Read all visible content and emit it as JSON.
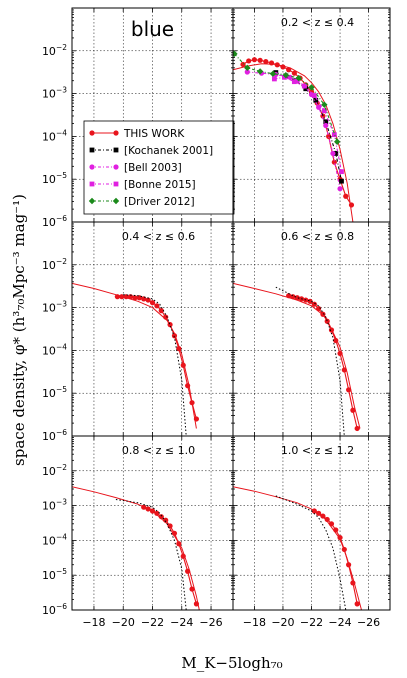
{
  "figure": {
    "panel_label": "blue",
    "ylabel": "space density, φ* (h³₇₀Mpc⁻³ mag⁻¹)",
    "xlabel": "M_K−5logh₇₀"
  },
  "chart_data": [
    {
      "type": "line",
      "title": "",
      "panel": "top-left",
      "xlim": [
        -16.5,
        -27.5
      ],
      "ylim": [
        1e-06,
        0.1
      ],
      "yscale": "log",
      "grid": true,
      "legend_position": "bottom-left",
      "legend": [
        "THIS WORK",
        "[Kochanek 2001]",
        "[Bell 2003]",
        "[Bonne 2015]",
        "[Driver 2012]"
      ],
      "series": []
    },
    {
      "type": "line",
      "title": "0.2 < z ≤ 0.4",
      "panel": "top-right",
      "xlim": [
        -16.5,
        -27.5
      ],
      "ylim": [
        1e-06,
        0.1
      ],
      "yscale": "log",
      "grid": true,
      "series": [
        {
          "name": "THIS WORK",
          "color": "#e8141c",
          "marker": "circle",
          "x": [
            -17.2,
            -17.6,
            -18.0,
            -18.4,
            -18.8,
            -19.2,
            -19.6,
            -20.0,
            -20.4,
            -20.8,
            -21.2,
            -21.6,
            -22.0,
            -22.4,
            -22.8,
            -23.2,
            -23.6,
            -24.0,
            -24.4,
            -24.8
          ],
          "y": [
            0.0048,
            0.0058,
            0.0062,
            0.006,
            0.0056,
            0.0052,
            0.0047,
            0.0042,
            0.0036,
            0.003,
            0.0023,
            0.0016,
            0.0011,
            0.0006,
            0.0003,
            0.0001,
            2.5e-05,
            1e-05,
            4e-06,
            2.5e-06
          ]
        },
        {
          "name": "THIS WORK fit",
          "color": "#e8141c",
          "marker": "none",
          "x": [
            -16.5,
            -17.5,
            -18.5,
            -19.5,
            -20.5,
            -21.5,
            -22.0,
            -22.5,
            -23.0,
            -23.5,
            -24.0,
            -24.5,
            -24.9
          ],
          "y": [
            0.0036,
            0.0044,
            0.005,
            0.0048,
            0.004,
            0.0026,
            0.0018,
            0.0011,
            0.00055,
            0.0002,
            5e-05,
            8e-06,
            1e-06
          ]
        },
        {
          "name": "[Kochanek 2001]",
          "color": "#000000",
          "marker": "square",
          "x": [
            -19.5,
            -20.2,
            -20.9,
            -21.6,
            -22.3,
            -23.0,
            -23.7,
            -24.1
          ],
          "y": [
            0.0031,
            0.0026,
            0.002,
            0.0013,
            0.0007,
            0.00022,
            4e-05,
            9e-06
          ]
        },
        {
          "name": "[Bell 2003]",
          "color": "#e020e0",
          "marker": "circle",
          "x": [
            -17.5,
            -18.5,
            -19.5,
            -20.5,
            -21.0,
            -21.5,
            -22.0,
            -22.5,
            -23.0,
            -23.5,
            -24.0
          ],
          "y": [
            0.0032,
            0.003,
            0.0028,
            0.0024,
            0.002,
            0.0015,
            0.00095,
            0.00048,
            0.00018,
            4e-05,
            6e-06
          ]
        },
        {
          "name": "[Bonne 2015]",
          "color": "#e020e0",
          "marker": "square",
          "x": [
            -19.4,
            -20.1,
            -20.8,
            -21.5,
            -22.2,
            -22.9,
            -23.6,
            -24.1
          ],
          "y": [
            0.0022,
            0.0024,
            0.0019,
            0.0015,
            0.0009,
            0.0004,
            0.00011,
            1.5e-05
          ]
        },
        {
          "name": "[Driver 2012]",
          "color": "#1b8a1b",
          "marker": "diamond",
          "x": [
            -16.6,
            -17.5,
            -18.4,
            -19.3,
            -20.2,
            -21.1,
            -22.0,
            -22.9,
            -23.8
          ],
          "y": [
            0.0085,
            0.004,
            0.0033,
            0.0029,
            0.0027,
            0.0023,
            0.0014,
            0.00055,
            7.5e-05
          ]
        }
      ]
    },
    {
      "type": "line",
      "title": "0.4 < z ≤ 0.6",
      "panel": "middle-left",
      "xlim": [
        -16.5,
        -27.5
      ],
      "ylim": [
        1e-06,
        0.1
      ],
      "yscale": "log",
      "grid": true,
      "series": [
        {
          "name": "THIS WORK",
          "color": "#e8141c",
          "marker": "circle",
          "x": [
            -19.6,
            -19.9,
            -20.2,
            -20.5,
            -20.8,
            -21.1,
            -21.4,
            -21.7,
            -22.0,
            -22.3,
            -22.6,
            -22.9,
            -23.2,
            -23.5,
            -23.8,
            -24.1,
            -24.4,
            -24.7,
            -25.0
          ],
          "y": [
            0.0018,
            0.0018,
            0.0018,
            0.0018,
            0.0017,
            0.0017,
            0.0016,
            0.0015,
            0.0013,
            0.0011,
            0.00085,
            0.0006,
            0.0004,
            0.00022,
            0.00011,
            4.5e-05,
            1.5e-05,
            6e-06,
            2.5e-06
          ]
        },
        {
          "name": "THIS WORK fit",
          "color": "#e8141c",
          "marker": "none",
          "x": [
            -16.5,
            -18.0,
            -19.5,
            -21.0,
            -22.0,
            -23.0,
            -23.5,
            -24.0,
            -24.5,
            -25.0
          ],
          "y": [
            0.0037,
            0.0028,
            0.002,
            0.0014,
            0.001,
            0.0005,
            0.00025,
            8e-05,
            1.5e-05,
            1.5e-06
          ]
        },
        {
          "name": "[Kochanek 2001]",
          "color": "#000000",
          "marker": "none",
          "x": [
            -20.0,
            -21.0,
            -22.0,
            -22.5,
            -23.0,
            -23.5,
            -24.0,
            -24.3
          ],
          "y": [
            0.002,
            0.0019,
            0.0016,
            0.0012,
            0.0006,
            0.0002,
            2e-05,
            1e-06
          ]
        }
      ]
    },
    {
      "type": "line",
      "title": "0.6 < z ≤ 0.8",
      "panel": "middle-right",
      "xlim": [
        -16.5,
        -27.5
      ],
      "ylim": [
        1e-06,
        0.1
      ],
      "yscale": "log",
      "grid": true,
      "series": [
        {
          "name": "THIS WORK",
          "color": "#e8141c",
          "marker": "circle",
          "x": [
            -20.4,
            -20.7,
            -21.0,
            -21.3,
            -21.6,
            -21.9,
            -22.2,
            -22.5,
            -22.8,
            -23.1,
            -23.4,
            -23.7,
            -24.0,
            -24.3,
            -24.6,
            -24.9,
            -25.2
          ],
          "y": [
            0.0019,
            0.0018,
            0.0017,
            0.0016,
            0.0015,
            0.0014,
            0.0012,
            0.00095,
            0.0007,
            0.00048,
            0.0003,
            0.00017,
            8.5e-05,
            3.5e-05,
            1.2e-05,
            4e-06,
            1.5e-06
          ]
        },
        {
          "name": "THIS WORK fit",
          "color": "#e8141c",
          "marker": "none",
          "x": [
            -16.5,
            -18.0,
            -19.5,
            -21.0,
            -22.0,
            -23.0,
            -24.0,
            -24.5,
            -25.0,
            -25.4
          ],
          "y": [
            0.0037,
            0.0028,
            0.0021,
            0.0015,
            0.0011,
            0.0006,
            0.00012,
            3e-05,
            5e-06,
            1.5e-06
          ]
        },
        {
          "name": "[Kochanek 2001]",
          "color": "#000000",
          "marker": "none",
          "x": [
            -19.5,
            -21.0,
            -22.0,
            -22.5,
            -23.0,
            -23.5,
            -24.0,
            -24.3
          ],
          "y": [
            0.003,
            0.0017,
            0.0014,
            0.0011,
            0.0006,
            0.0002,
            2e-05,
            1e-06
          ]
        }
      ]
    },
    {
      "type": "line",
      "title": "0.8 < z ≤ 1.0",
      "panel": "bottom-left",
      "xlim": [
        -16.5,
        -27.5
      ],
      "ylim": [
        1e-06,
        0.1
      ],
      "yscale": "log",
      "grid": true,
      "series": [
        {
          "name": "THIS WORK",
          "color": "#e8141c",
          "marker": "circle",
          "x": [
            -21.4,
            -21.7,
            -22.0,
            -22.3,
            -22.6,
            -22.9,
            -23.2,
            -23.5,
            -23.8,
            -24.1,
            -24.4,
            -24.7,
            -25.0
          ],
          "y": [
            0.0009,
            0.0008,
            0.0007,
            0.0006,
            0.00048,
            0.00038,
            0.00026,
            0.00016,
            8e-05,
            3.5e-05,
            1.3e-05,
            4e-06,
            1.5e-06
          ]
        },
        {
          "name": "THIS WORK fit",
          "color": "#e8141c",
          "marker": "none",
          "x": [
            -16.5,
            -18.0,
            -19.5,
            -21.0,
            -22.0,
            -23.0,
            -24.0,
            -24.5,
            -25.0,
            -25.2
          ],
          "y": [
            0.0035,
            0.0025,
            0.0017,
            0.0011,
            0.0007,
            0.0003,
            6e-05,
            1.5e-05,
            2.5e-06,
            1e-06
          ]
        },
        {
          "name": "[Kochanek 2001]",
          "color": "#000000",
          "marker": "none",
          "x": [
            -19.5,
            -21.0,
            -22.0,
            -22.5,
            -23.0,
            -23.5,
            -24.0,
            -24.3
          ],
          "y": [
            0.0015,
            0.0012,
            0.0009,
            0.0006,
            0.0003,
            0.0001,
            1.5e-05,
            1e-06
          ]
        }
      ]
    },
    {
      "type": "line",
      "title": "1.0 < z ≤ 1.2",
      "panel": "bottom-right",
      "xlim": [
        -16.5,
        -27.5
      ],
      "ylim": [
        1e-06,
        0.1
      ],
      "yscale": "log",
      "grid": true,
      "series": [
        {
          "name": "THIS WORK",
          "color": "#e8141c",
          "marker": "circle",
          "x": [
            -22.2,
            -22.5,
            -22.8,
            -23.1,
            -23.4,
            -23.7,
            -24.0,
            -24.3,
            -24.6,
            -24.9,
            -25.2
          ],
          "y": [
            0.0007,
            0.0006,
            0.0005,
            0.0004,
            0.0003,
            0.0002,
            0.00012,
            5.5e-05,
            2e-05,
            6e-06,
            1.5e-06
          ]
        },
        {
          "name": "THIS WORK fit",
          "color": "#e8141c",
          "marker": "none",
          "x": [
            -16.5,
            -18.0,
            -19.5,
            -21.0,
            -22.0,
            -23.0,
            -24.0,
            -24.5,
            -25.0,
            -25.5
          ],
          "y": [
            0.0035,
            0.0026,
            0.0018,
            0.0012,
            0.0008,
            0.0004,
            0.00011,
            3e-05,
            6e-06,
            1e-06
          ]
        },
        {
          "name": "[Kochanek 2001]",
          "color": "#000000",
          "marker": "none",
          "x": [
            -19.5,
            -21.0,
            -22.0,
            -22.5,
            -23.0,
            -23.5,
            -24.0,
            -24.4
          ],
          "y": [
            0.0019,
            0.0011,
            0.0007,
            0.00045,
            0.0002,
            6e-05,
            8e-06,
            1e-06
          ]
        }
      ]
    }
  ]
}
